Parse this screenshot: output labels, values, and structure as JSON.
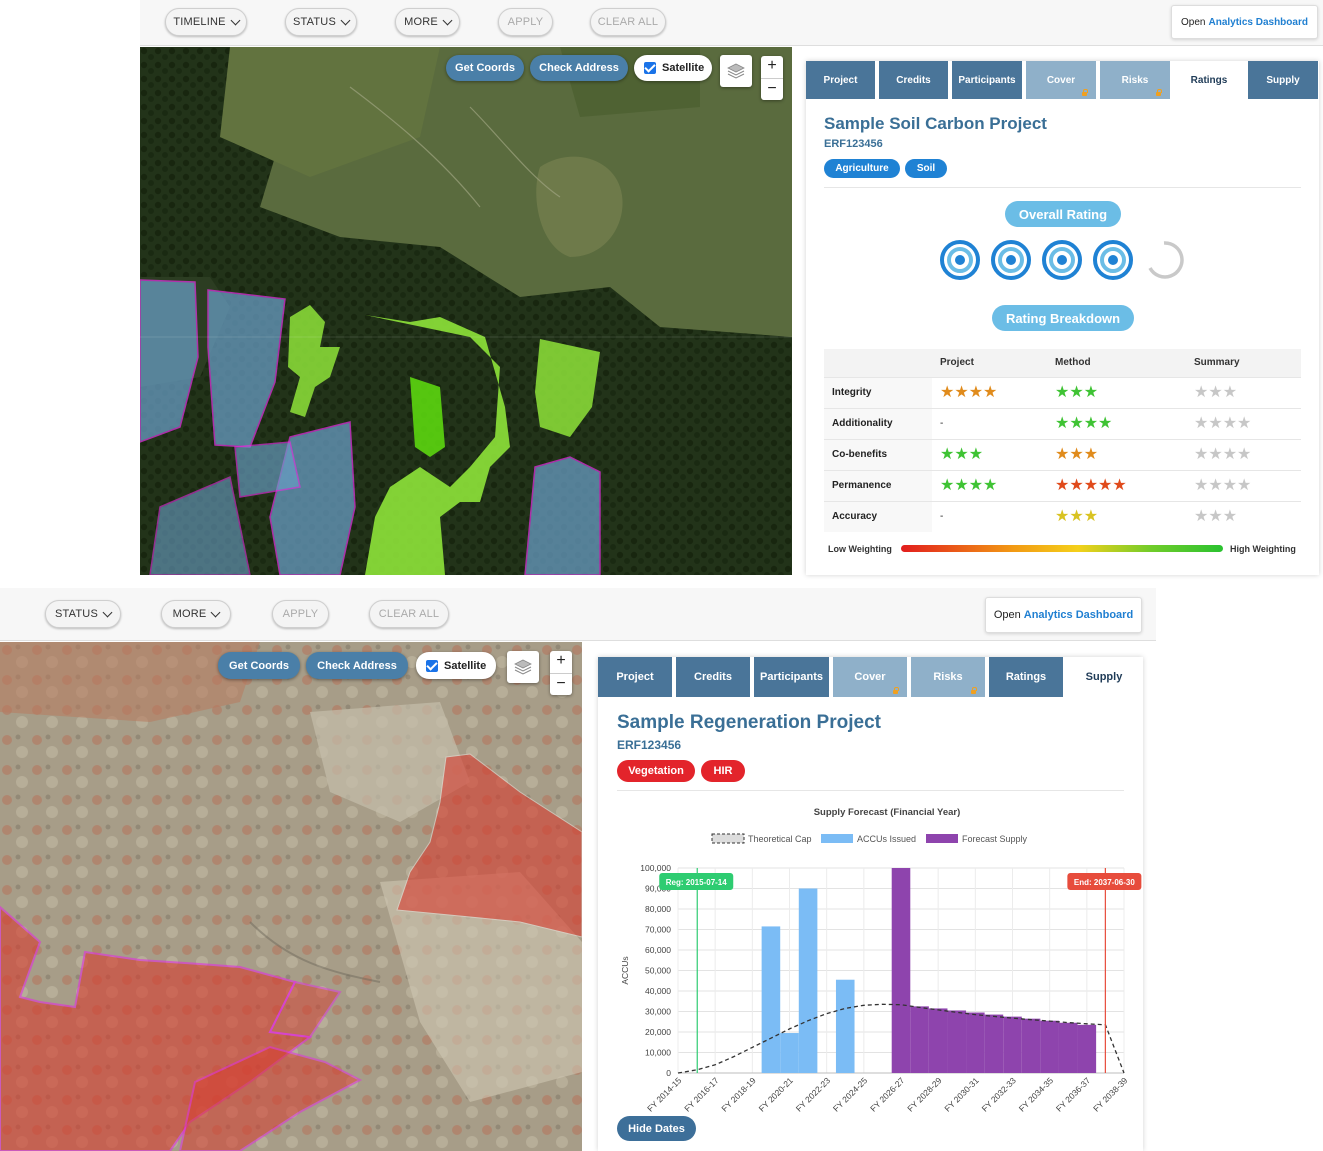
{
  "top": {
    "filters": {
      "timeline": "TIMELINE",
      "status": "STATUS",
      "more": "MORE",
      "apply": "APPLY",
      "clear_all": "CLEAR ALL"
    },
    "dashboard": {
      "prefix": "Open",
      "link": "Analytics Dashboard"
    },
    "map": {
      "get_coords": "Get Coords",
      "check_address": "Check Address",
      "satellite": "Satellite",
      "zoom_in": "+",
      "zoom_out": "−"
    },
    "tabs": [
      {
        "label": "Project",
        "state": "normal"
      },
      {
        "label": "Credits",
        "state": "normal"
      },
      {
        "label": "Participants",
        "state": "normal"
      },
      {
        "label": "Cover",
        "state": "locked"
      },
      {
        "label": "Risks",
        "state": "locked"
      },
      {
        "label": "Ratings",
        "state": "active"
      },
      {
        "label": "Supply",
        "state": "normal"
      }
    ],
    "project": {
      "title": "Sample Soil Carbon Project",
      "id": "ERF123456",
      "tags": [
        "Agriculture",
        "Soil"
      ]
    },
    "overall_rating_label": "Overall Rating",
    "overall_rating": {
      "value": 4,
      "max": 5
    },
    "rating_breakdown_label": "Rating Breakdown",
    "table": {
      "headers": [
        "",
        "Project",
        "Method",
        "Summary"
      ],
      "rows": [
        {
          "label": "Integrity",
          "project": {
            "stars": 4,
            "max": 4,
            "color": "#e08b1c"
          },
          "method": {
            "stars": 3,
            "max": 3,
            "color": "#3fc334"
          },
          "summary": {
            "stars": 3
          }
        },
        {
          "label": "Additionality",
          "project_text": "-",
          "method": {
            "stars": 4,
            "max": 4,
            "color": "#3fc334"
          },
          "summary": {
            "stars": 4
          }
        },
        {
          "label": "Co-benefits",
          "project": {
            "stars": 3,
            "max": 3,
            "color": "#3fc334"
          },
          "method": {
            "stars": 3,
            "max": 3,
            "color": "#e08b1c"
          },
          "summary": {
            "stars": 4
          }
        },
        {
          "label": "Permanence",
          "project": {
            "stars": 4,
            "max": 4,
            "color": "#3fc334"
          },
          "method": {
            "stars": 5,
            "max": 5,
            "color": "#e04a1b"
          },
          "summary": {
            "stars": 4
          }
        },
        {
          "label": "Accuracy",
          "project_text": "-",
          "method": {
            "stars": 3,
            "max": 3,
            "color": "#d9c322"
          },
          "summary": {
            "stars": 3
          }
        }
      ]
    },
    "weighting": {
      "low": "Low Weighting",
      "high": "High Weighting"
    }
  },
  "bottom": {
    "filters": {
      "status": "STATUS",
      "more": "MORE",
      "apply": "APPLY",
      "clear_all": "CLEAR ALL"
    },
    "dashboard": {
      "prefix": "Open",
      "link": "Analytics Dashboard"
    },
    "map": {
      "get_coords": "Get Coords",
      "check_address": "Check Address",
      "satellite": "Satellite",
      "zoom_in": "+",
      "zoom_out": "−"
    },
    "tabs": [
      {
        "label": "Project",
        "state": "normal"
      },
      {
        "label": "Credits",
        "state": "normal"
      },
      {
        "label": "Participants",
        "state": "normal"
      },
      {
        "label": "Cover",
        "state": "locked"
      },
      {
        "label": "Risks",
        "state": "locked"
      },
      {
        "label": "Ratings",
        "state": "normal"
      },
      {
        "label": "Supply",
        "state": "active"
      }
    ],
    "project": {
      "title": "Sample Regeneration Project",
      "id": "ERF123456",
      "tags": [
        "Vegetation",
        "HIR"
      ]
    },
    "hide_dates": "Hide Dates"
  },
  "chart_data": {
    "type": "bar",
    "title": "Supply Forecast (Financial Year)",
    "ylabel": "ACCUs",
    "ylim": [
      0,
      100000
    ],
    "yticks": [
      "0",
      "10,000",
      "20,000",
      "30,000",
      "40,000",
      "50,000",
      "60,000",
      "70,000",
      "80,000",
      "90,000",
      "100,000"
    ],
    "x_tick_labels": [
      "FY 2014-15",
      "FY 2016-17",
      "FY 2018-19",
      "FY 2020-21",
      "FY 2022-23",
      "FY 2024-25",
      "FY 2026-27",
      "FY 2028-29",
      "FY 2030-31",
      "FY 2032-33",
      "FY 2034-35",
      "FY 2036-37",
      "FY 2038-39"
    ],
    "categories": [
      "FY 2014-15",
      "FY 2015-16",
      "FY 2016-17",
      "FY 2017-18",
      "FY 2018-19",
      "FY 2019-20",
      "FY 2020-21",
      "FY 2021-22",
      "FY 2022-23",
      "FY 2023-24",
      "FY 2024-25",
      "FY 2025-26",
      "FY 2026-27",
      "FY 2027-28",
      "FY 2028-29",
      "FY 2029-30",
      "FY 2030-31",
      "FY 2031-32",
      "FY 2032-33",
      "FY 2033-34",
      "FY 2034-35",
      "FY 2035-36",
      "FY 2036-37",
      "FY 2037-38",
      "FY 2038-39"
    ],
    "series": [
      {
        "name": "Theoretical Cap",
        "kind": "dashed-line",
        "color": "#333333",
        "values": [
          0,
          1500,
          4000,
          8000,
          12500,
          17000,
          21500,
          25500,
          29000,
          31500,
          33000,
          33500,
          33300,
          32000,
          30800,
          29600,
          28500,
          27600,
          26800,
          26000,
          25300,
          24600,
          24000,
          23500,
          0
        ]
      },
      {
        "name": "ACCUs Issued",
        "kind": "bar",
        "color": "#7bbcf5",
        "values": [
          0,
          0,
          0,
          0,
          0,
          71500,
          19500,
          90000,
          0,
          45500,
          0,
          0,
          0,
          0,
          0,
          0,
          0,
          0,
          0,
          0,
          0,
          0,
          0,
          0,
          0
        ]
      },
      {
        "name": "Forecast Supply",
        "kind": "bar",
        "color": "#8e44ad",
        "values": [
          0,
          0,
          0,
          0,
          0,
          0,
          0,
          0,
          0,
          0,
          0,
          0,
          100000,
          32500,
          31500,
          30500,
          29500,
          28500,
          27500,
          26500,
          25500,
          24500,
          23500,
          0,
          0
        ]
      }
    ],
    "annotations": [
      {
        "label": "Reg: 2015-07-14",
        "at": "2015-07-14",
        "color": "#2ecc71"
      },
      {
        "label": "End: 2037-06-30",
        "at": "2037-06-30",
        "color": "#e74c3c"
      }
    ],
    "legend": "top",
    "grid": true
  }
}
